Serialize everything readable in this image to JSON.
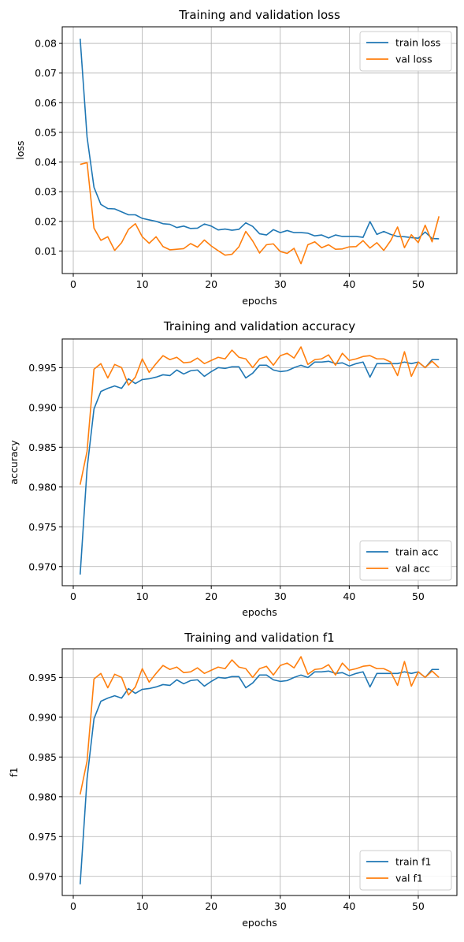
{
  "colors": {
    "train": "#1f77b4",
    "val": "#ff7f0e",
    "grid": "#b0b0b0",
    "axis": "#000000"
  },
  "chart_data": [
    {
      "type": "line",
      "title": "Training and validation loss",
      "xlabel": "epochs",
      "ylabel": "loss",
      "xlim": [
        -1.6,
        55.6
      ],
      "ylim": [
        0.0024,
        0.0856
      ],
      "xticks": [
        0,
        10,
        20,
        30,
        40,
        50
      ],
      "yticks": [
        0.01,
        0.02,
        0.03,
        0.04,
        0.05,
        0.06,
        0.07,
        0.08
      ],
      "xtick_labels": [
        "0",
        "10",
        "20",
        "30",
        "40",
        "50"
      ],
      "ytick_labels": [
        "0.01",
        "0.02",
        "0.03",
        "0.04",
        "0.05",
        "0.06",
        "0.07",
        "0.08"
      ],
      "grid": true,
      "legend": "upper right",
      "x": [
        1,
        2,
        3,
        4,
        5,
        6,
        7,
        8,
        9,
        10,
        11,
        12,
        13,
        14,
        15,
        16,
        17,
        18,
        19,
        20,
        21,
        22,
        23,
        24,
        25,
        26,
        27,
        28,
        29,
        30,
        31,
        32,
        33,
        34,
        35,
        36,
        37,
        38,
        39,
        40,
        41,
        42,
        43,
        44,
        45,
        46,
        47,
        48,
        49,
        50,
        51,
        52,
        53
      ],
      "series": [
        {
          "name": "train loss",
          "color": "#1f77b4",
          "values": [
            0.0816,
            0.0484,
            0.0315,
            0.0257,
            0.0243,
            0.0242,
            0.0232,
            0.0222,
            0.0222,
            0.021,
            0.0205,
            0.02,
            0.0192,
            0.019,
            0.0179,
            0.0184,
            0.0176,
            0.0177,
            0.0191,
            0.0184,
            0.0171,
            0.0174,
            0.017,
            0.0173,
            0.0195,
            0.0183,
            0.0158,
            0.0154,
            0.0172,
            0.0162,
            0.0169,
            0.0162,
            0.0162,
            0.016,
            0.0151,
            0.0154,
            0.0144,
            0.0154,
            0.0149,
            0.0149,
            0.0149,
            0.0146,
            0.0199,
            0.0156,
            0.0166,
            0.0156,
            0.0149,
            0.0148,
            0.0145,
            0.0143,
            0.0164,
            0.0142,
            0.0141
          ]
        },
        {
          "name": "val loss",
          "color": "#ff7f0e",
          "values": [
            0.0392,
            0.0398,
            0.0177,
            0.0136,
            0.0148,
            0.0102,
            0.0128,
            0.0173,
            0.0192,
            0.0148,
            0.0126,
            0.0148,
            0.0115,
            0.0104,
            0.0106,
            0.0108,
            0.0125,
            0.0113,
            0.0137,
            0.0117,
            0.0101,
            0.0086,
            0.0089,
            0.0114,
            0.0166,
            0.0134,
            0.0093,
            0.0121,
            0.0124,
            0.0098,
            0.0092,
            0.0109,
            0.0057,
            0.0121,
            0.0131,
            0.0111,
            0.0121,
            0.0106,
            0.0107,
            0.0114,
            0.0115,
            0.0135,
            0.011,
            0.0128,
            0.0102,
            0.0135,
            0.0181,
            0.0111,
            0.0155,
            0.0128,
            0.0187,
            0.0131,
            0.0217
          ]
        }
      ]
    },
    {
      "type": "line",
      "title": "Training and validation accuracy",
      "xlabel": "epochs",
      "ylabel": "accuracy",
      "xlim": [
        -1.6,
        55.6
      ],
      "ylim": [
        0.9676,
        0.9986
      ],
      "xticks": [
        0,
        10,
        20,
        30,
        40,
        50
      ],
      "yticks": [
        0.97,
        0.975,
        0.98,
        0.985,
        0.99,
        0.995
      ],
      "xtick_labels": [
        "0",
        "10",
        "20",
        "30",
        "40",
        "50"
      ],
      "ytick_labels": [
        "0.970",
        "0.975",
        "0.980",
        "0.985",
        "0.990",
        "0.995"
      ],
      "grid": true,
      "legend": "lower right",
      "x": [
        1,
        2,
        3,
        4,
        5,
        6,
        7,
        8,
        9,
        10,
        11,
        12,
        13,
        14,
        15,
        16,
        17,
        18,
        19,
        20,
        21,
        22,
        23,
        24,
        25,
        26,
        27,
        28,
        29,
        30,
        31,
        32,
        33,
        34,
        35,
        36,
        37,
        38,
        39,
        40,
        41,
        42,
        43,
        44,
        45,
        46,
        47,
        48,
        49,
        50,
        51,
        52,
        53
      ],
      "series": [
        {
          "name": "train acc",
          "color": "#1f77b4",
          "values": [
            0.969,
            0.9823,
            0.9898,
            0.992,
            0.9924,
            0.9927,
            0.9924,
            0.9936,
            0.993,
            0.9935,
            0.9936,
            0.9938,
            0.9941,
            0.994,
            0.9947,
            0.9942,
            0.9946,
            0.9947,
            0.9939,
            0.9945,
            0.995,
            0.9949,
            0.9951,
            0.9951,
            0.9937,
            0.9943,
            0.9953,
            0.9953,
            0.9947,
            0.9945,
            0.9946,
            0.995,
            0.9953,
            0.995,
            0.9957,
            0.9957,
            0.9958,
            0.9955,
            0.9956,
            0.9952,
            0.9955,
            0.9957,
            0.9938,
            0.9955,
            0.9955,
            0.9955,
            0.9955,
            0.9957,
            0.9955,
            0.9957,
            0.995,
            0.996,
            0.996
          ]
        },
        {
          "name": "val acc",
          "color": "#ff7f0e",
          "values": [
            0.9803,
            0.9845,
            0.9948,
            0.9955,
            0.9937,
            0.9954,
            0.995,
            0.9928,
            0.9938,
            0.9961,
            0.9944,
            0.9955,
            0.9965,
            0.996,
            0.9963,
            0.9956,
            0.9957,
            0.9962,
            0.9955,
            0.9959,
            0.9963,
            0.9961,
            0.9972,
            0.9963,
            0.9961,
            0.995,
            0.9961,
            0.9964,
            0.9953,
            0.9965,
            0.9968,
            0.9962,
            0.9976,
            0.9954,
            0.996,
            0.9961,
            0.9966,
            0.9953,
            0.9968,
            0.9959,
            0.9961,
            0.9964,
            0.9965,
            0.9961,
            0.9961,
            0.9957,
            0.994,
            0.997,
            0.9939,
            0.9957,
            0.995,
            0.9958,
            0.995
          ]
        }
      ]
    },
    {
      "type": "line",
      "title": "Training and validation f1",
      "xlabel": "epochs",
      "ylabel": "f1",
      "xlim": [
        -1.6,
        55.6
      ],
      "ylim": [
        0.9676,
        0.9986
      ],
      "xticks": [
        0,
        10,
        20,
        30,
        40,
        50
      ],
      "yticks": [
        0.97,
        0.975,
        0.98,
        0.985,
        0.99,
        0.995
      ],
      "xtick_labels": [
        "0",
        "10",
        "20",
        "30",
        "40",
        "50"
      ],
      "ytick_labels": [
        "0.970",
        "0.975",
        "0.980",
        "0.985",
        "0.990",
        "0.995"
      ],
      "grid": true,
      "legend": "lower right",
      "x": [
        1,
        2,
        3,
        4,
        5,
        6,
        7,
        8,
        9,
        10,
        11,
        12,
        13,
        14,
        15,
        16,
        17,
        18,
        19,
        20,
        21,
        22,
        23,
        24,
        25,
        26,
        27,
        28,
        29,
        30,
        31,
        32,
        33,
        34,
        35,
        36,
        37,
        38,
        39,
        40,
        41,
        42,
        43,
        44,
        45,
        46,
        47,
        48,
        49,
        50,
        51,
        52,
        53
      ],
      "series": [
        {
          "name": "train f1",
          "color": "#1f77b4",
          "values": [
            0.969,
            0.9823,
            0.9898,
            0.992,
            0.9924,
            0.9927,
            0.9924,
            0.9936,
            0.993,
            0.9935,
            0.9936,
            0.9938,
            0.9941,
            0.994,
            0.9947,
            0.9942,
            0.9946,
            0.9947,
            0.9939,
            0.9945,
            0.995,
            0.9949,
            0.9951,
            0.9951,
            0.9937,
            0.9943,
            0.9953,
            0.9953,
            0.9947,
            0.9945,
            0.9946,
            0.995,
            0.9953,
            0.995,
            0.9957,
            0.9957,
            0.9958,
            0.9955,
            0.9956,
            0.9952,
            0.9955,
            0.9957,
            0.9938,
            0.9955,
            0.9955,
            0.9955,
            0.9955,
            0.9957,
            0.9955,
            0.9957,
            0.995,
            0.996,
            0.996
          ]
        },
        {
          "name": "val f1",
          "color": "#ff7f0e",
          "values": [
            0.9803,
            0.9845,
            0.9948,
            0.9955,
            0.9937,
            0.9954,
            0.995,
            0.9928,
            0.9938,
            0.9961,
            0.9944,
            0.9955,
            0.9965,
            0.996,
            0.9963,
            0.9956,
            0.9957,
            0.9962,
            0.9955,
            0.9959,
            0.9963,
            0.9961,
            0.9972,
            0.9963,
            0.9961,
            0.995,
            0.9961,
            0.9964,
            0.9953,
            0.9965,
            0.9968,
            0.9962,
            0.9976,
            0.9954,
            0.996,
            0.9961,
            0.9966,
            0.9953,
            0.9968,
            0.9959,
            0.9961,
            0.9964,
            0.9965,
            0.9961,
            0.9961,
            0.9957,
            0.994,
            0.997,
            0.9939,
            0.9957,
            0.995,
            0.9958,
            0.995
          ]
        }
      ]
    }
  ]
}
